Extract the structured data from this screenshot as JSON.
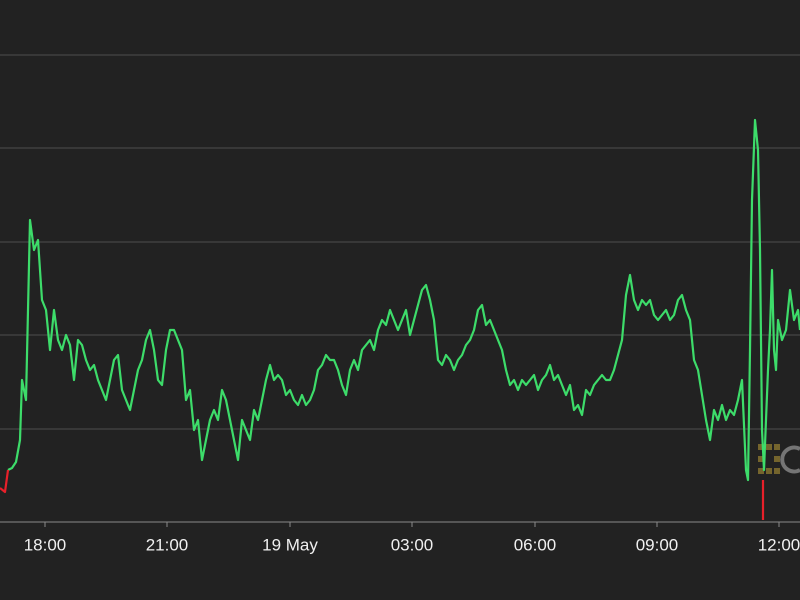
{
  "chart_data": {
    "type": "line",
    "xlim": [
      0,
      800
    ],
    "ylim": [
      0,
      522
    ],
    "xticks": [
      {
        "value": 45,
        "label": "18:00"
      },
      {
        "value": 167,
        "label": "21:00"
      },
      {
        "value": 290,
        "label": "19 May"
      },
      {
        "value": 412,
        "label": "03:00"
      },
      {
        "value": 535,
        "label": "06:00"
      },
      {
        "value": 657,
        "label": "09:00"
      },
      {
        "value": 779,
        "label": "12:00"
      }
    ],
    "yticks": [
      0,
      93,
      187,
      280,
      374,
      467
    ],
    "grid": true,
    "series": [
      {
        "color": "#3ddc6a",
        "x": [
          8,
          12,
          16,
          20,
          22,
          26,
          30,
          34,
          38,
          42,
          46,
          50,
          54,
          58,
          62,
          66,
          70,
          74,
          78,
          82,
          86,
          90,
          94,
          98,
          102,
          106,
          110,
          114,
          118,
          122,
          126,
          130,
          134,
          138,
          142,
          146,
          150,
          154,
          158,
          162,
          166,
          170,
          174,
          178,
          182,
          186,
          190,
          194,
          198,
          202,
          206,
          210,
          214,
          218,
          222,
          226,
          230,
          234,
          238,
          242,
          246,
          250,
          254,
          258,
          262,
          266,
          270,
          274,
          278,
          282,
          286,
          290,
          294,
          298,
          302,
          306,
          310,
          314,
          318,
          322,
          326,
          330,
          334,
          338,
          342,
          346,
          350,
          354,
          358,
          362,
          366,
          370,
          374,
          378,
          382,
          386,
          390,
          394,
          398,
          402,
          406,
          410,
          414,
          418,
          422,
          426,
          430,
          434,
          438,
          442,
          446,
          450,
          454,
          458,
          462,
          466,
          470,
          474,
          478,
          482,
          486,
          490,
          494,
          498,
          502,
          506,
          510,
          514,
          518,
          522,
          526,
          530,
          534,
          538,
          542,
          546,
          550,
          554,
          558,
          562,
          566,
          570,
          574,
          578,
          582,
          586,
          590,
          594,
          598,
          602,
          606,
          610,
          614,
          618,
          622,
          626,
          630,
          634,
          638,
          642,
          646,
          650,
          654,
          658,
          662,
          666,
          670,
          674,
          678,
          682,
          686,
          690,
          694,
          698,
          702,
          706,
          710,
          714,
          718,
          722,
          726,
          730,
          734,
          738,
          742,
          746,
          748,
          750,
          752,
          755,
          758,
          760,
          762,
          764,
          766,
          768,
          770,
          772,
          774,
          776,
          778,
          782,
          786,
          790,
          794,
          798,
          800
        ],
        "values": [
          52,
          54,
          60,
          82,
          142,
          122,
          302,
          272,
          282,
          222,
          212,
          172,
          212,
          182,
          172,
          187,
          177,
          142,
          182,
          177,
          162,
          152,
          157,
          142,
          132,
          122,
          142,
          162,
          167,
          132,
          122,
          112,
          132,
          152,
          162,
          182,
          192,
          172,
          142,
          137,
          172,
          192,
          192,
          182,
          172,
          122,
          132,
          92,
          102,
          62,
          82,
          102,
          112,
          102,
          132,
          122,
          102,
          82,
          62,
          102,
          92,
          82,
          112,
          102,
          122,
          142,
          157,
          142,
          147,
          142,
          127,
          132,
          122,
          117,
          127,
          117,
          122,
          132,
          152,
          157,
          167,
          162,
          162,
          152,
          137,
          127,
          152,
          162,
          152,
          172,
          177,
          182,
          172,
          192,
          202,
          197,
          212,
          202,
          192,
          202,
          212,
          187,
          202,
          217,
          232,
          237,
          222,
          202,
          162,
          157,
          167,
          162,
          152,
          162,
          167,
          177,
          182,
          192,
          212,
          217,
          197,
          202,
          192,
          182,
          172,
          152,
          137,
          142,
          132,
          142,
          137,
          142,
          147,
          132,
          142,
          147,
          157,
          142,
          147,
          137,
          127,
          137,
          112,
          117,
          107,
          132,
          127,
          137,
          142,
          147,
          142,
          142,
          152,
          167,
          182,
          227,
          247,
          222,
          212,
          222,
          217,
          222,
          207,
          202,
          207,
          212,
          202,
          207,
          222,
          227,
          212,
          202,
          162,
          152,
          127,
          102,
          82,
          112,
          102,
          117,
          102,
          112,
          107,
          122,
          142,
          52,
          42,
          172,
          322,
          402,
          372,
          272,
          92,
          52,
          102,
          152,
          192,
          252,
          172,
          152,
          202,
          182,
          192,
          232,
          202,
          212,
          192
        ]
      },
      {
        "color": "#e8202a",
        "x": [
          0,
          5,
          8
        ],
        "values": [
          34,
          30,
          52
        ]
      },
      {
        "color": "#e8202a",
        "x": [
          763,
          763
        ],
        "values": [
          42,
          2
        ]
      }
    ]
  }
}
